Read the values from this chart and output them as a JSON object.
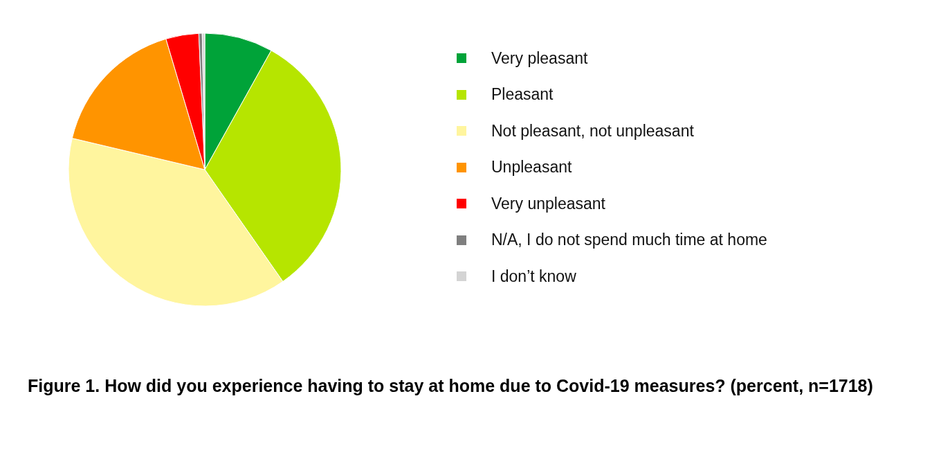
{
  "chart_data": {
    "type": "pie",
    "title": "Figure 1. How did you experience having to stay at home due to Covid-19 measures? (percent, n=1718)",
    "categories": [
      "Very pleasant",
      "Pleasant",
      "Not pleasant, not unpleasant",
      "Unpleasant",
      "Very unpleasant",
      "N/A, I do not spend much time at home",
      "I don’t know"
    ],
    "values": [
      8.1,
      32.2,
      38.4,
      16.7,
      3.9,
      0.4,
      0.3
    ],
    "colors": [
      "#00a339",
      "#b6e500",
      "#fff59e",
      "#ff9400",
      "#ff0000",
      "#7f7f7f",
      "#d4d4d4"
    ],
    "legend": "right"
  }
}
